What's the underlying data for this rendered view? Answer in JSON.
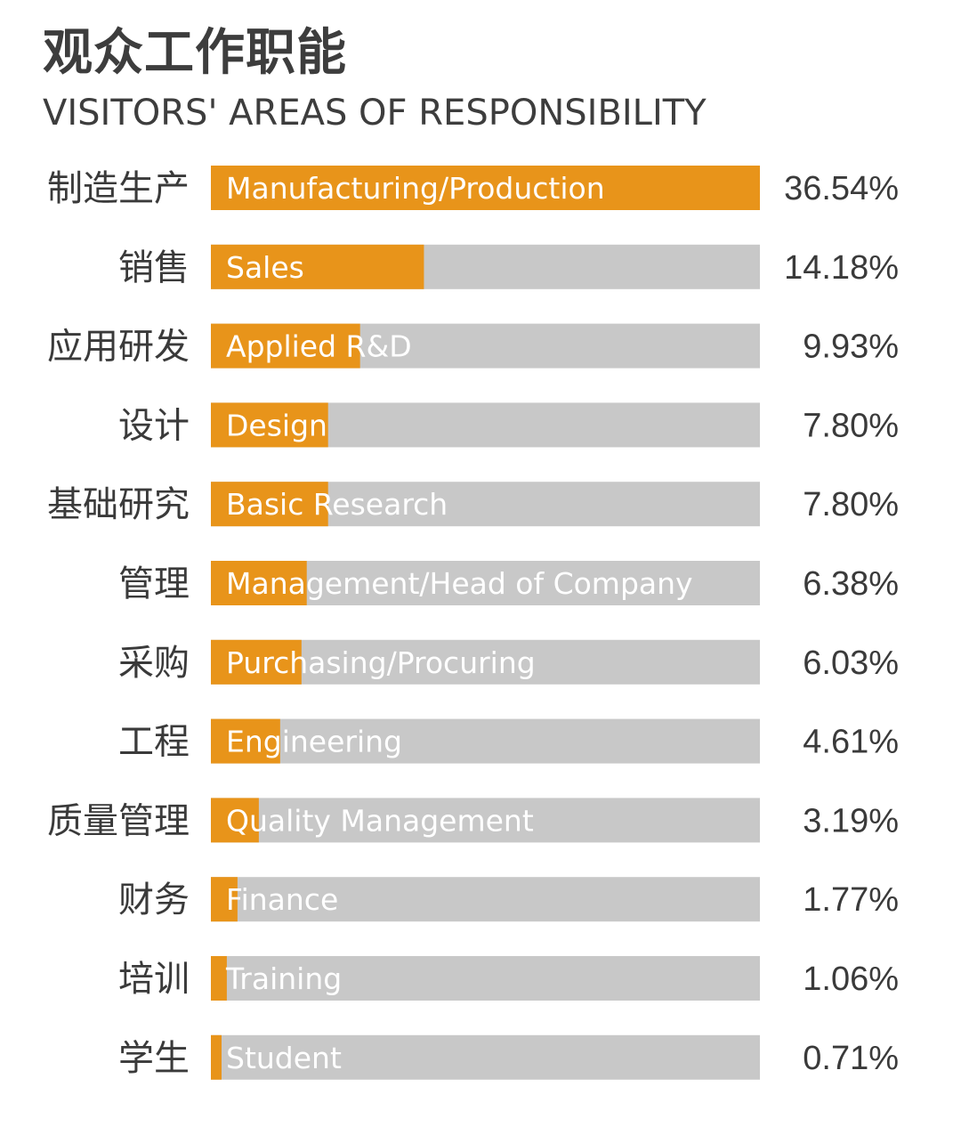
{
  "title_cn": "观众工作职能",
  "title_en": "VISITORS' AREAS OF RESPONSIBILITY",
  "colors": {
    "bar_fill": "#e8941a",
    "bar_track": "#c8c8c8",
    "text": "#3a3a3a",
    "inner_label": "#ffffff"
  },
  "chart_data": {
    "type": "bar",
    "orientation": "horizontal",
    "title": "观众工作职能",
    "subtitle": "VISITORS' AREAS OF RESPONSIBILITY",
    "xlim": [
      0,
      36.54
    ],
    "grid": false,
    "legend": "none",
    "categories_cn": [
      "制造生产",
      "销售",
      "应用研发",
      "设计",
      "基础研究",
      "管理",
      "采购",
      "工程",
      "质量管理",
      "财务",
      "培训",
      "学生"
    ],
    "categories": [
      "Manufacturing/Production",
      "Sales",
      "Applied R&D",
      "Design",
      "Basic Research",
      "Management/Head of Company",
      "Purchasing/Procuring",
      "Engineering",
      "Quality Management",
      "Finance",
      "Training",
      "Student"
    ],
    "values": [
      36.54,
      14.18,
      9.93,
      7.8,
      7.8,
      6.38,
      6.03,
      4.61,
      3.19,
      1.77,
      1.06,
      0.71
    ],
    "value_labels": [
      "36.54%",
      "14.18%",
      "9.93%",
      "7.80%",
      "7.80%",
      "6.38%",
      "6.03%",
      "4.61%",
      "3.19%",
      "1.77%",
      "1.06%",
      "0.71%"
    ]
  }
}
